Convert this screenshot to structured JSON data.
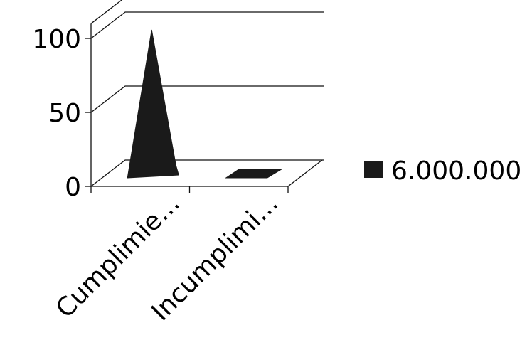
{
  "chart_data": {
    "type": "bar",
    "subtype": "3d-pyramid",
    "categories": [
      "Cumplimie...",
      "Incumplimi..."
    ],
    "series": [
      {
        "name": "6.000.000",
        "values": [
          100,
          0
        ]
      }
    ],
    "yticks": [
      "0",
      "50",
      "100"
    ],
    "ylim": [
      0,
      100
    ],
    "grid": true,
    "legend_position": "right",
    "colors": {
      "series": "#1a1a1a",
      "axis": "#111111",
      "background": "#ffffff"
    }
  }
}
